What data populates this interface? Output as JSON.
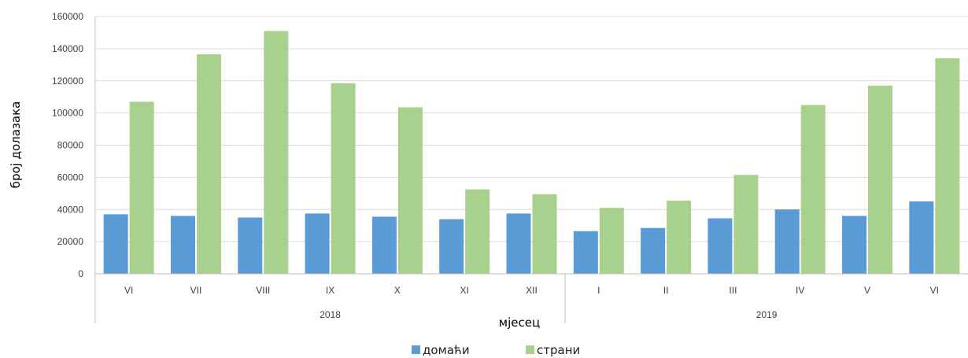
{
  "chart_data": {
    "type": "bar",
    "title": "",
    "xlabel": "мјесец",
    "ylabel": "број долазака",
    "ylim": [
      0,
      160000
    ],
    "yticks": [
      0,
      20000,
      40000,
      60000,
      80000,
      100000,
      120000,
      140000,
      160000
    ],
    "categories": [
      "VI",
      "VII",
      "VIII",
      "IX",
      "X",
      "XI",
      "XII",
      "I",
      "II",
      "III",
      "IV",
      "V",
      "VI"
    ],
    "groups": [
      {
        "label": "2018",
        "count": 7
      },
      {
        "label": "2019",
        "count": 6
      }
    ],
    "series": [
      {
        "name": "домаћи",
        "color": "#5b9bd5",
        "values": [
          37000,
          36000,
          35000,
          37500,
          35500,
          34000,
          37500,
          26500,
          28500,
          34500,
          40000,
          36000,
          45000
        ]
      },
      {
        "name": "страни",
        "color": "#a9d18e",
        "values": [
          107000,
          136500,
          151000,
          118500,
          103500,
          52500,
          49500,
          41000,
          45500,
          61500,
          105000,
          117000,
          134000
        ]
      }
    ],
    "grid": true,
    "legend_position": "bottom"
  }
}
